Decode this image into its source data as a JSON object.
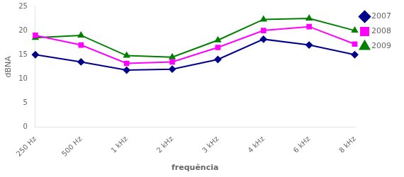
{
  "chart_data": {
    "type": "line",
    "xlabel": "frequência",
    "ylabel": "dBNA",
    "categories": [
      "250 Hz",
      "500 Hz",
      "1 kHz",
      "2 kHz",
      "3 kHz",
      "4 kHz",
      "6 kHz",
      "8 kHz"
    ],
    "series": [
      {
        "name": "2007",
        "color": "#00008B",
        "marker": "diamond",
        "values": [
          15.0,
          13.5,
          11.8,
          12.0,
          14.0,
          18.2,
          17.0,
          15.0
        ]
      },
      {
        "name": "2008",
        "color": "#FF00FF",
        "marker": "square",
        "values": [
          19.0,
          17.0,
          13.2,
          13.5,
          16.5,
          20.0,
          20.8,
          17.2
        ]
      },
      {
        "name": "2009",
        "color": "#008000",
        "marker": "triangle",
        "values": [
          18.5,
          19.0,
          14.8,
          14.5,
          18.0,
          22.3,
          22.5,
          20.0
        ]
      }
    ],
    "ylim": [
      0,
      25
    ],
    "yticks": [
      0,
      5,
      10,
      15,
      20,
      25
    ],
    "grid": false,
    "legend": "right"
  }
}
